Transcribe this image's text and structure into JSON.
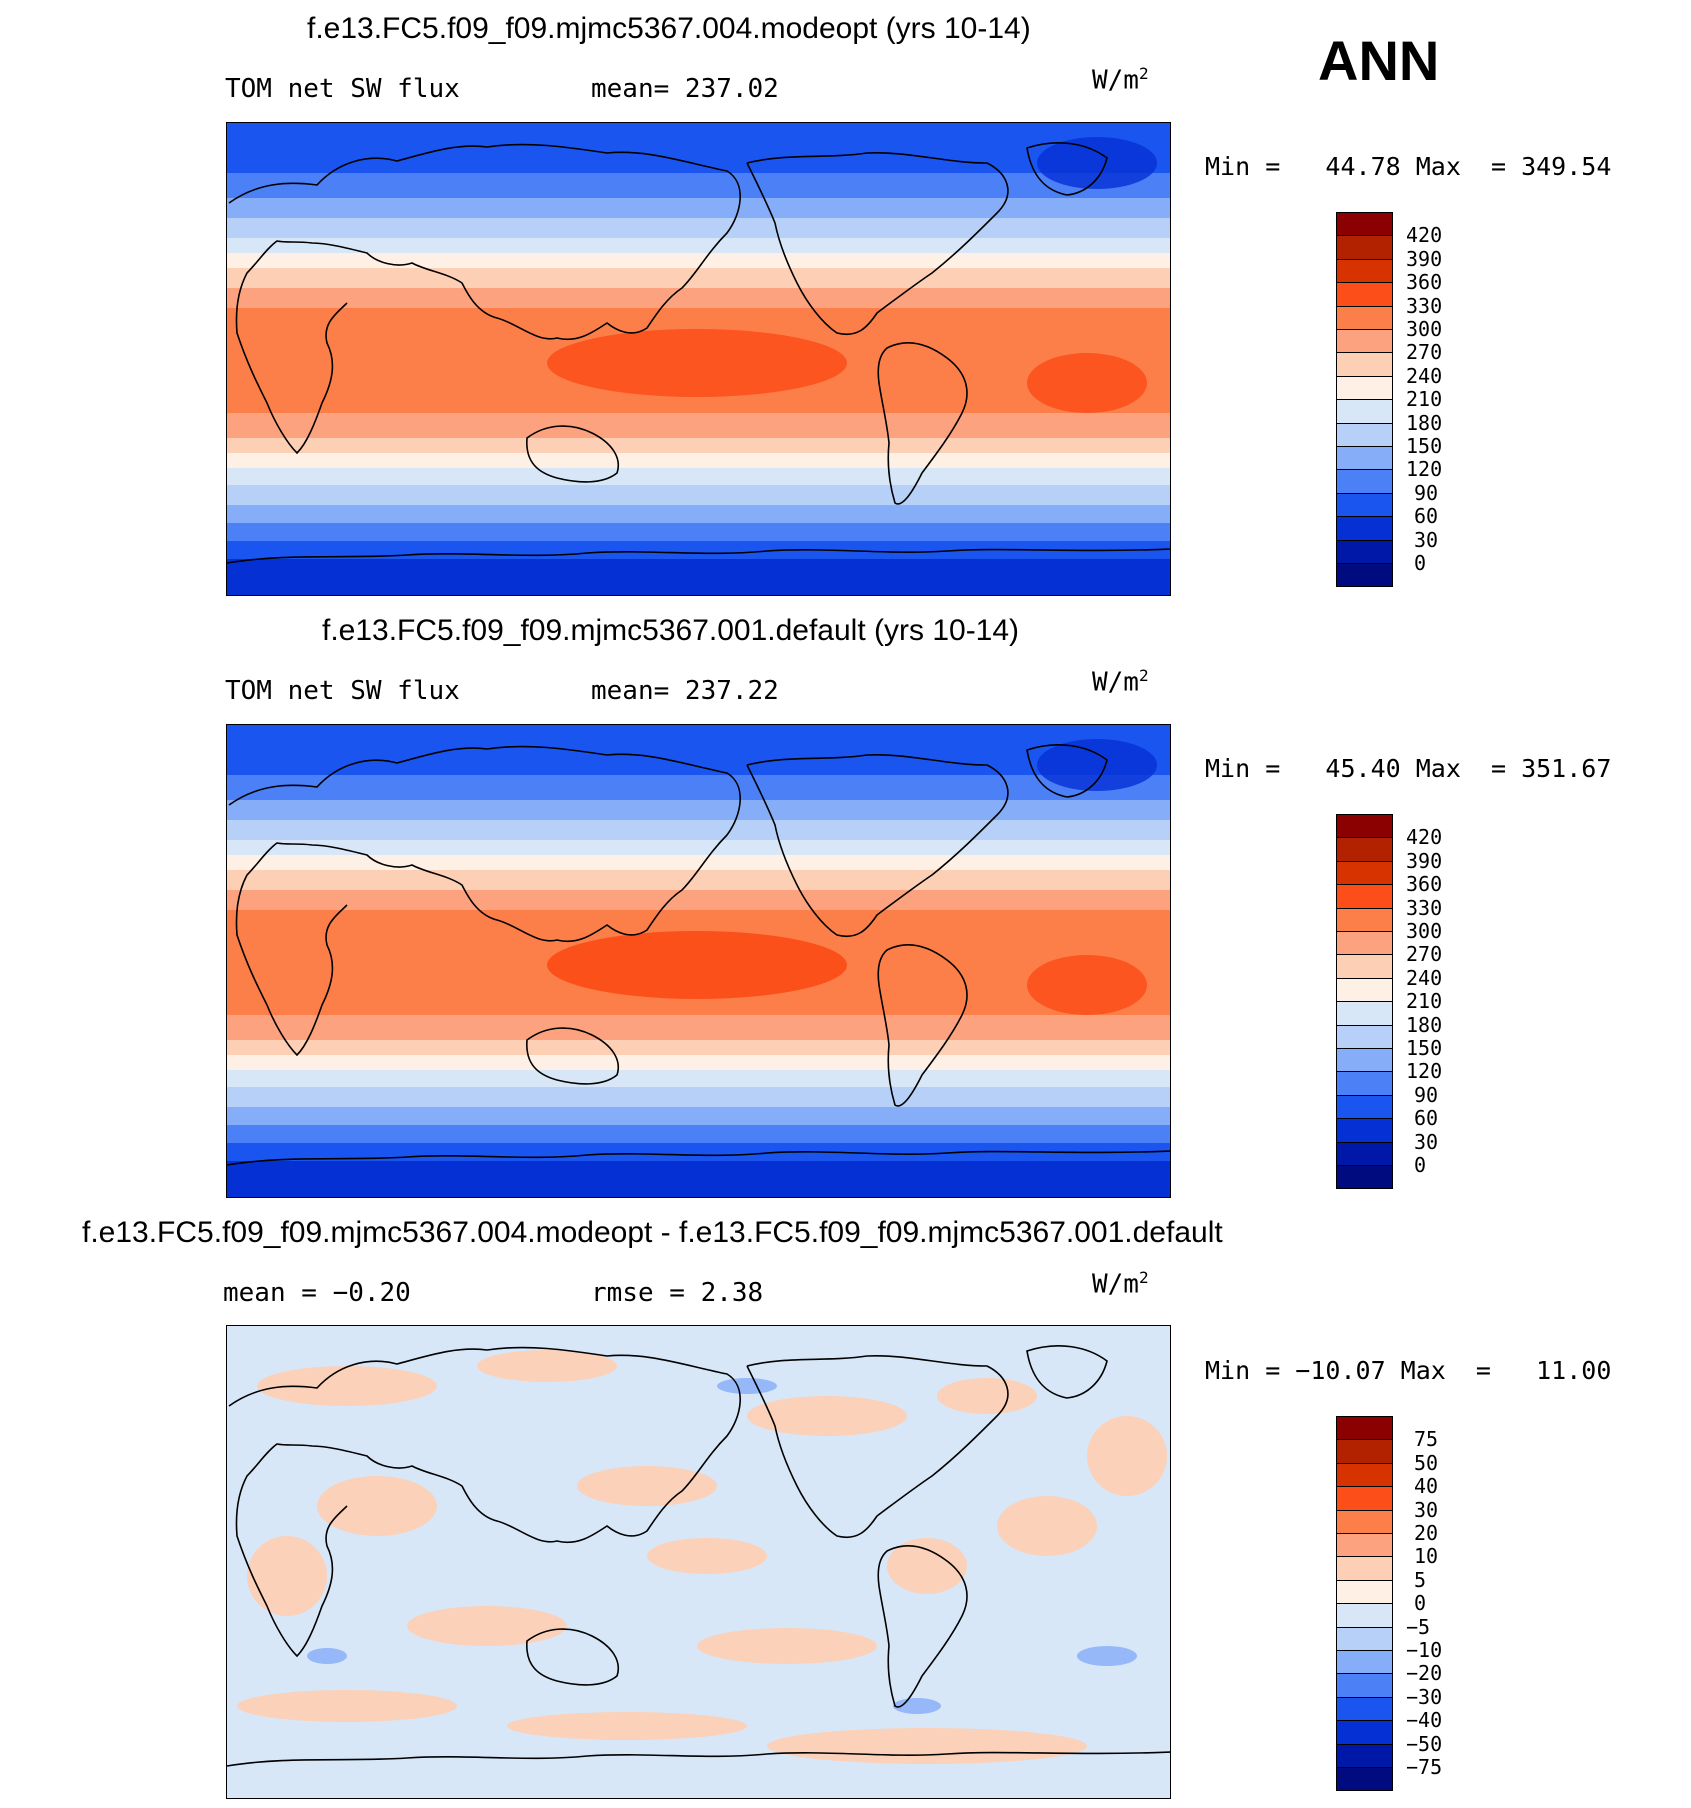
{
  "season": "ANN",
  "panels": [
    {
      "id": "modeopt",
      "title": "f.e13.FC5.f09_f09.mjmc5367.004.modeopt (yrs 10-14)",
      "left_label": "TOM net SW flux",
      "center_label": "mean= 237.02",
      "units": "W/m",
      "units_exp": "2",
      "minmax": "Min =   44.78 Max  = 349.54"
    },
    {
      "id": "default",
      "title": "f.e13.FC5.f09_f09.mjmc5367.001.default (yrs 10-14)",
      "left_label": "TOM net SW flux",
      "center_label": "mean= 237.22",
      "units": "W/m",
      "units_exp": "2",
      "minmax": "Min =   45.40 Max  = 351.67"
    },
    {
      "id": "diff",
      "title": "f.e13.FC5.f09_f09.mjmc5367.004.modeopt - f.e13.FC5.f09_f09.mjmc5367.001.default",
      "left_label": "mean =   −0.20",
      "center_label": "rmse =    2.38",
      "units": "W/m",
      "units_exp": "2",
      "minmax": "Min = −10.07 Max  =   11.00"
    }
  ],
  "colorbars": {
    "flux": {
      "labels": [
        "420",
        "390",
        "360",
        "330",
        "300",
        "270",
        "240",
        "210",
        "180",
        "150",
        "120",
        "90",
        "60",
        "30",
        "0"
      ],
      "colors": [
        "#8b0000",
        "#b22200",
        "#d63300",
        "#fc4e18",
        "#fc7f4a",
        "#fca27e",
        "#fdd0b6",
        "#fef0e4",
        "#d7e7f8",
        "#b6d0f7",
        "#86adf7",
        "#4b80f7",
        "#1a55f0",
        "#0530d4",
        "#0018a8",
        "#000b80"
      ]
    },
    "diff": {
      "labels": [
        "75",
        "50",
        "40",
        "30",
        "20",
        "10",
        "5",
        "0",
        "−5",
        "−10",
        "−20",
        "−30",
        "−40",
        "−50",
        "−75"
      ],
      "colors": [
        "#8b0000",
        "#b22200",
        "#d63300",
        "#fc4e18",
        "#fc7f4a",
        "#fca27e",
        "#fdd0b6",
        "#fef0e4",
        "#d7e7f8",
        "#b6d0f7",
        "#86adf7",
        "#4b80f7",
        "#1a55f0",
        "#0530d4",
        "#0018a8",
        "#000b80"
      ]
    }
  }
}
